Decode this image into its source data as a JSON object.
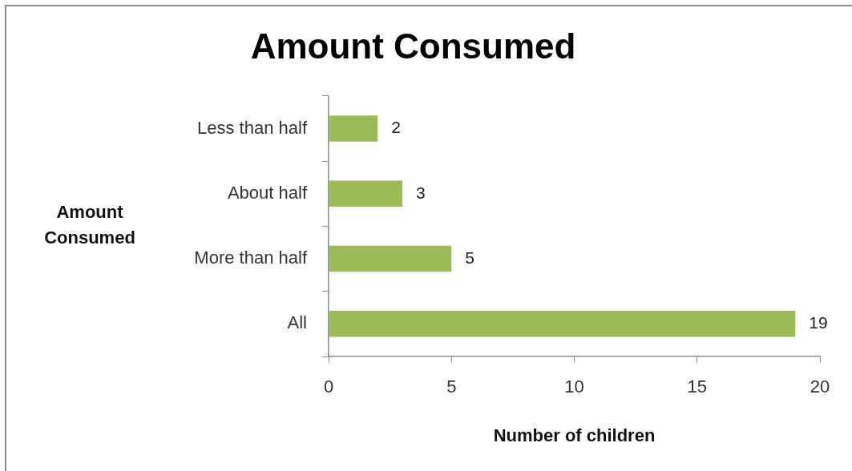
{
  "chart_data": {
    "type": "bar",
    "orientation": "horizontal",
    "title": "Amount Consumed",
    "categories": [
      "Less than half",
      "About half",
      "More than half",
      "All"
    ],
    "values": [
      2,
      3,
      5,
      19
    ],
    "color": "#9bbb59",
    "data_labels": true,
    "xlim": [
      0,
      20
    ],
    "xticks": [
      0,
      5,
      10,
      15,
      20
    ],
    "xlabel": "Number of children",
    "ylabel": "Amount Consumed"
  }
}
